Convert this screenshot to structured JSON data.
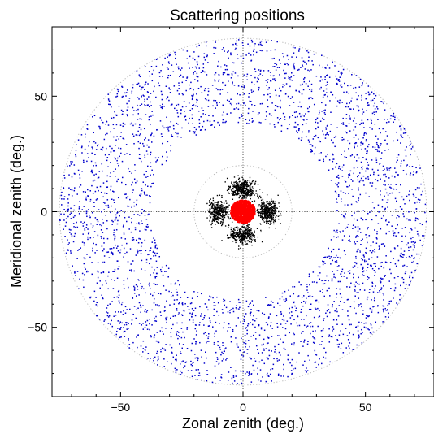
{
  "chart_data": {
    "type": "scatter",
    "title": "Scattering positions",
    "xlabel": "Zonal zenith (deg.)",
    "ylabel": "Meridional zenith (deg.)",
    "xlim": [
      -78,
      78
    ],
    "ylim": [
      -80,
      80
    ],
    "xticks": [
      -50,
      0,
      50
    ],
    "yticks": [
      -50,
      0,
      50
    ],
    "tick_labels": {
      "x": [
        "−50",
        "0",
        "50"
      ],
      "y": [
        "−50",
        "0",
        "50"
      ]
    },
    "reference_circles_radius_deg": [
      20,
      75
    ],
    "crosshair_at": [
      0,
      0
    ],
    "grid": false,
    "series": [
      {
        "color": "#0000cc",
        "distribution": "annulus",
        "radius_range_deg": [
          38,
          75
        ],
        "approx_point_count": 3300,
        "sample_points": [
          [
            -60,
            20
          ],
          [
            -45,
            45
          ],
          [
            0,
            72
          ],
          [
            40,
            55
          ],
          [
            62,
            15
          ],
          [
            55,
            -35
          ],
          [
            20,
            -70
          ],
          [
            -25,
            -65
          ],
          [
            -65,
            -20
          ],
          [
            -40,
            -50
          ]
        ]
      },
      {
        "color": "#000000",
        "distribution": "cross-shaped cluster",
        "lobe_centers_deg": [
          [
            0,
            10
          ],
          [
            0,
            -10
          ],
          [
            10,
            0
          ],
          [
            -10,
            0
          ]
        ],
        "approx_point_count": 1400,
        "sample_points": [
          [
            0,
            10
          ],
          [
            0,
            -10
          ],
          [
            10,
            0
          ],
          [
            -10,
            0
          ],
          [
            3,
            8
          ],
          [
            -8,
            -3
          ]
        ]
      },
      {
        "color": "#ff0000",
        "distribution": "central disk",
        "radius_deg": 5,
        "approx_point_count": 900,
        "sample_points": [
          [
            0,
            0
          ],
          [
            2,
            2
          ],
          [
            -3,
            1
          ],
          [
            1,
            -3
          ],
          [
            -2,
            -2
          ]
        ]
      }
    ]
  }
}
